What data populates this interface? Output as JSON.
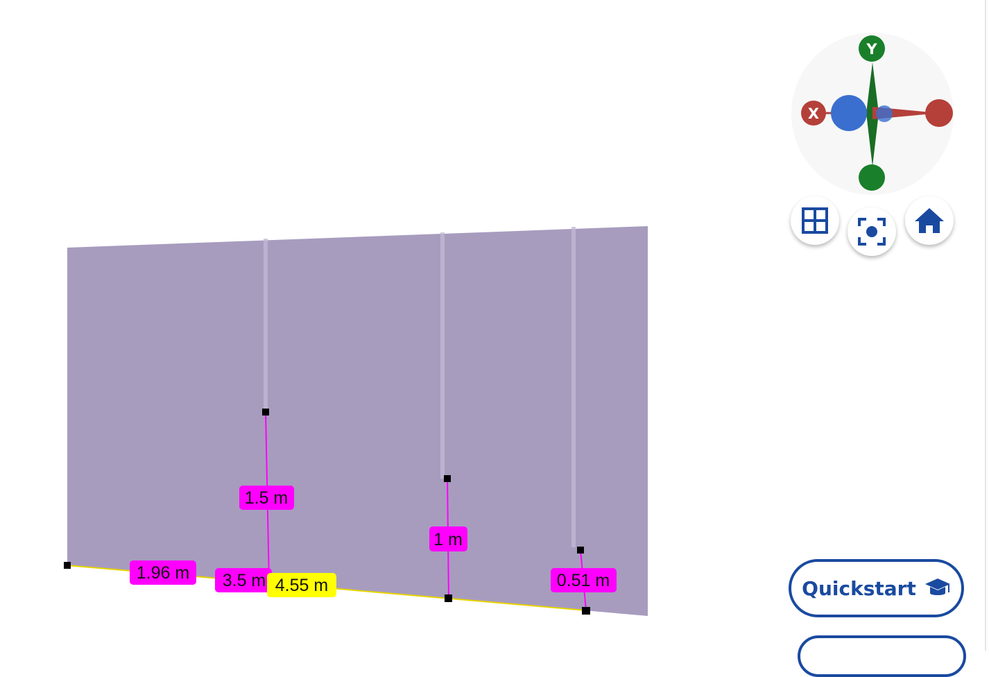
{
  "scene": {
    "wall_color": "#a79cbe",
    "post_color": "#c3bad4",
    "dimension_color": "#ff00ff",
    "total_dimension_color": "#ffff00",
    "dimensions": {
      "d1": "1.96 m",
      "d2": "3.5 m",
      "d3": "1.5 m",
      "d4": "1 m",
      "d5": "0.51 m",
      "total": "4.55 m"
    }
  },
  "gizmo": {
    "y_label": "Y",
    "x_label": "X",
    "colors": {
      "x": "#b5403a",
      "y": "#1a7f2a",
      "z": "#3a6fcf"
    }
  },
  "toolbar": {
    "grid_icon": "grid-view-icon",
    "focus_icon": "focus-camera-icon",
    "home_icon": "home-icon"
  },
  "quickstart": {
    "label": "Quickstart",
    "icon": "graduation-cap-icon"
  }
}
